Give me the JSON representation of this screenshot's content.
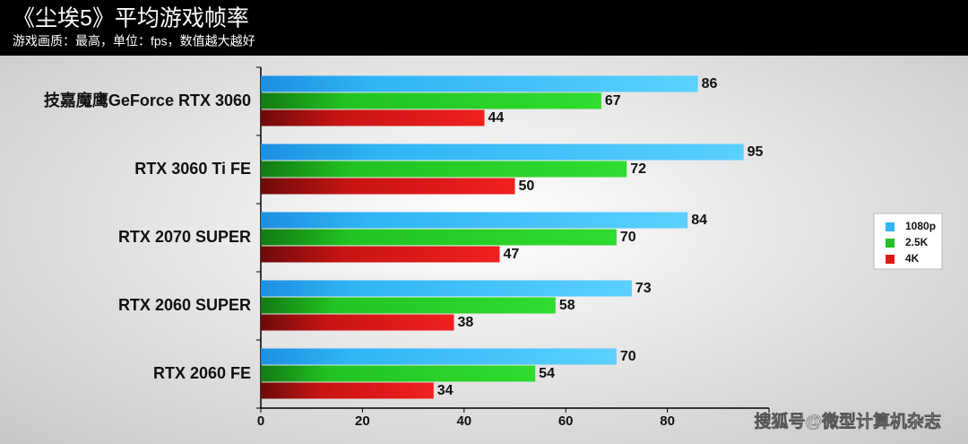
{
  "chart_data": {
    "type": "bar",
    "orientation": "horizontal",
    "title": "《尘埃5》平均游戏帧率",
    "subtitle": "游戏画质：最高，单位：fps，数值越大越好",
    "categories": [
      "技嘉魔鹰GeForce RTX 3060",
      "RTX 3060 Ti FE",
      "RTX 2070 SUPER",
      "RTX 2060 SUPER",
      "RTX 2060 FE"
    ],
    "series": [
      {
        "name": "1080p",
        "color": "#2fb4f5",
        "values": [
          86,
          95,
          84,
          73,
          70
        ]
      },
      {
        "name": "2.5K",
        "color": "#22c322",
        "values": [
          67,
          72,
          70,
          58,
          54
        ]
      },
      {
        "name": "4K",
        "color": "#e01818",
        "values": [
          44,
          50,
          47,
          38,
          34
        ]
      }
    ],
    "xlim": [
      0,
      100
    ],
    "xticks": [
      0,
      20,
      40,
      60,
      80
    ],
    "legend": "right",
    "watermark": "搜狐号@微型计算机杂志"
  }
}
